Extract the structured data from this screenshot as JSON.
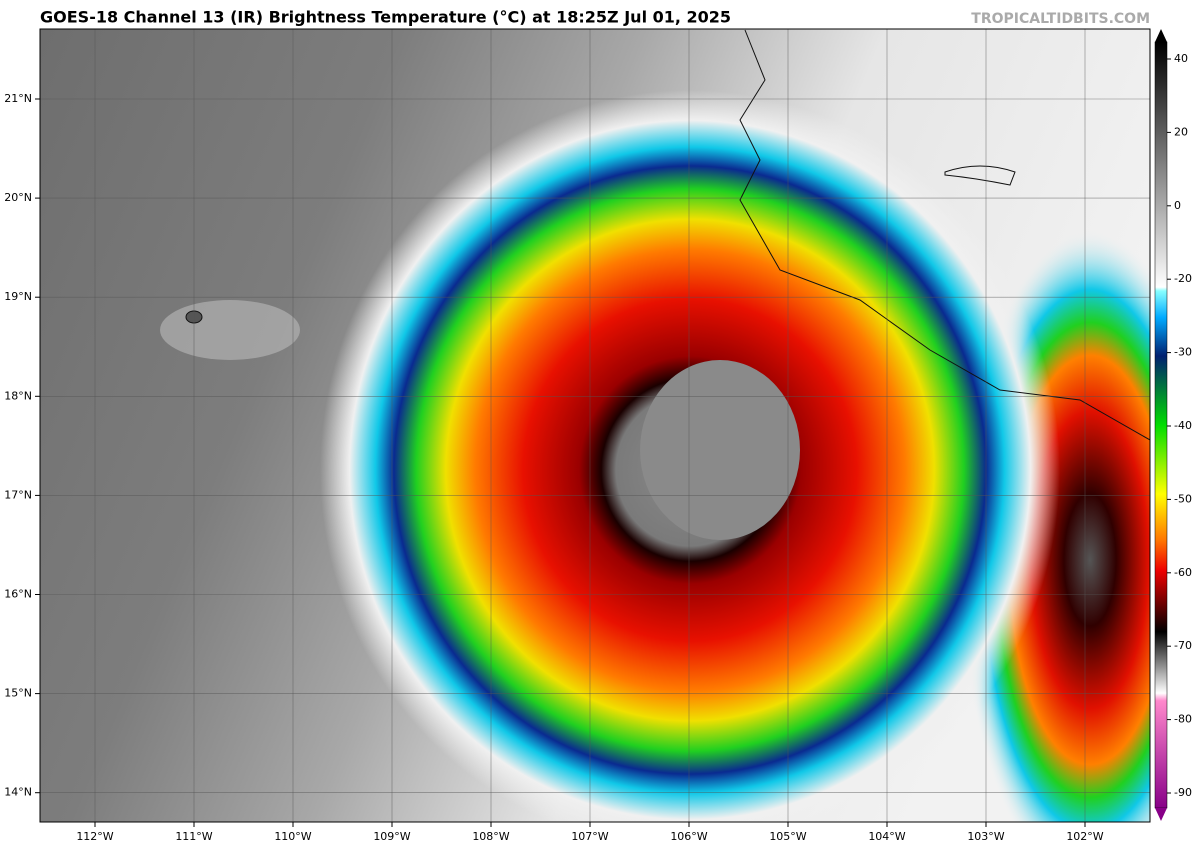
{
  "map": {
    "title": "GOES-18 Channel 13 (IR) Brightness Temperature (°C) at 18:25Z Jul 01, 2025",
    "credit": "TROPICALTIDBITS.COM",
    "lon_labels": [
      "112°W",
      "111°W",
      "110°W",
      "109°W",
      "108°W",
      "107°W",
      "106°W",
      "105°W",
      "104°W",
      "103°W",
      "102°W"
    ],
    "lat_labels": [
      "21°N",
      "20°N",
      "19°N",
      "18°N",
      "17°N",
      "16°N",
      "15°N",
      "14°N"
    ],
    "colorbar_ticks": [
      40,
      20,
      0,
      -20,
      -30,
      -40,
      -50,
      -60,
      -70,
      -80,
      -90
    ]
  }
}
